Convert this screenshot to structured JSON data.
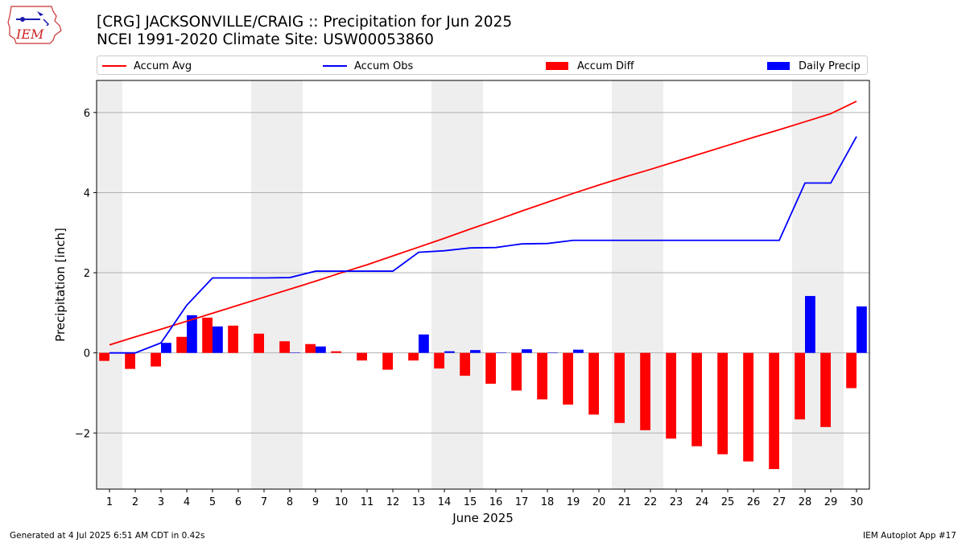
{
  "header": {
    "title_line1": "[CRG] JACKSONVILLE/CRAIG :: Precipitation for Jun 2025",
    "title_line2": "NCEI 1991-2020 Climate Site: USW00053860"
  },
  "logo": {
    "text": "IEM"
  },
  "footer": {
    "left": "Generated at 4 Jul 2025 6:51 AM CDT in 0.42s",
    "right": "IEM Autoplot App #17"
  },
  "colors": {
    "accum_avg": "#ff0000",
    "accum_obs": "#0000ff",
    "accum_diff": "#ff0000",
    "daily_precip": "#0000ff",
    "weekend_shade": "#eeeeee",
    "grid": "#b0b0b0"
  },
  "chart_data": {
    "type": "bar",
    "title": "[CRG] JACKSONVILLE/CRAIG :: Precipitation for Jun 2025",
    "xlabel": "June 2025",
    "ylabel": "Precipitation [inch]",
    "ylim": [
      -3.4,
      6.8
    ],
    "xlim": [
      0.5,
      30.5
    ],
    "yticks": [
      -2,
      0,
      2,
      4,
      6
    ],
    "ytick_labels": [
      "−2",
      "0",
      "2",
      "4",
      "6"
    ],
    "grid": "horizontal",
    "legend_position": "top",
    "categories": [
      "1",
      "2",
      "3",
      "4",
      "5",
      "6",
      "7",
      "8",
      "9",
      "10",
      "11",
      "12",
      "13",
      "14",
      "15",
      "16",
      "17",
      "18",
      "19",
      "20",
      "21",
      "22",
      "23",
      "24",
      "25",
      "26",
      "27",
      "28",
      "29",
      "30"
    ],
    "weekend_days": [
      1,
      7,
      8,
      14,
      15,
      21,
      22,
      28,
      29
    ],
    "series": [
      {
        "name": "Accum Avg",
        "kind": "line",
        "values": [
          0.2,
          0.4,
          0.59,
          0.79,
          0.99,
          1.19,
          1.39,
          1.59,
          1.79,
          2.0,
          2.2,
          2.42,
          2.64,
          2.86,
          3.09,
          3.31,
          3.54,
          3.76,
          3.98,
          4.19,
          4.39,
          4.58,
          4.78,
          4.98,
          5.18,
          5.38,
          5.57,
          5.77,
          5.97,
          6.28
        ]
      },
      {
        "name": "Accum Obs",
        "kind": "line",
        "values": [
          0.0,
          0.0,
          0.25,
          1.19,
          1.87,
          1.87,
          1.87,
          1.88,
          2.04,
          2.04,
          2.04,
          2.04,
          2.51,
          2.55,
          2.62,
          2.63,
          2.72,
          2.73,
          2.81,
          2.81,
          2.81,
          2.81,
          2.81,
          2.81,
          2.81,
          2.81,
          2.81,
          4.24,
          4.24,
          5.4
        ]
      },
      {
        "name": "Accum Diff",
        "kind": "bar",
        "values": [
          -0.2,
          -0.4,
          -0.34,
          0.4,
          0.88,
          0.68,
          0.48,
          0.29,
          0.22,
          0.04,
          -0.19,
          -0.42,
          -0.19,
          -0.39,
          -0.57,
          -0.77,
          -0.94,
          -1.16,
          -1.29,
          -1.54,
          -1.75,
          -1.93,
          -2.14,
          -2.33,
          -2.53,
          -2.71,
          -2.9,
          -1.66,
          -1.85,
          -0.88
        ]
      },
      {
        "name": "Daily Precip",
        "kind": "bar",
        "values": [
          0.0,
          0.0,
          0.25,
          0.94,
          0.66,
          0.0,
          0.0,
          0.01,
          0.16,
          0.0,
          0.0,
          0.0,
          0.46,
          0.04,
          0.07,
          0.01,
          0.09,
          0.01,
          0.08,
          0.0,
          0.0,
          0.0,
          0.0,
          0.0,
          0.0,
          0.0,
          0.0,
          1.42,
          0.0,
          1.16
        ]
      }
    ]
  }
}
